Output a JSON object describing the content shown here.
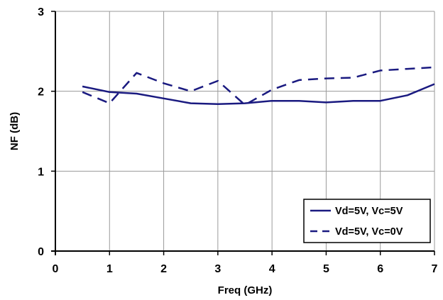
{
  "chart_data": {
    "type": "line",
    "xlabel": "Freq (GHz)",
    "ylabel": "NF (dB)",
    "xlim": [
      0,
      7
    ],
    "ylim": [
      0,
      3
    ],
    "xticks": [
      "0",
      "1",
      "2",
      "3",
      "4",
      "5",
      "6",
      "7"
    ],
    "yticks": [
      "0",
      "1",
      "2",
      "3"
    ],
    "grid": true,
    "legend_position": "bottom-right",
    "series": [
      {
        "name": "Vd=5V, Vc=5V",
        "style": "solid",
        "color": "#1a1a80",
        "x": [
          0.5,
          1.0,
          1.5,
          2.0,
          2.5,
          3.0,
          3.5,
          4.0,
          4.5,
          5.0,
          5.5,
          6.0,
          6.5,
          7.0
        ],
        "y": [
          2.06,
          1.99,
          1.97,
          1.91,
          1.85,
          1.84,
          1.85,
          1.88,
          1.88,
          1.86,
          1.88,
          1.88,
          1.95,
          2.09
        ]
      },
      {
        "name": "Vd=5V, Vc=0V",
        "style": "dashed",
        "color": "#1a1a80",
        "x": [
          0.5,
          1.0,
          1.5,
          2.0,
          2.5,
          3.0,
          3.5,
          4.0,
          4.5,
          5.0,
          5.5,
          6.0,
          6.5,
          7.0
        ],
        "y": [
          1.99,
          1.85,
          2.23,
          2.1,
          2.0,
          2.13,
          1.83,
          2.02,
          2.14,
          2.16,
          2.17,
          2.26,
          2.28,
          2.3
        ]
      }
    ]
  }
}
